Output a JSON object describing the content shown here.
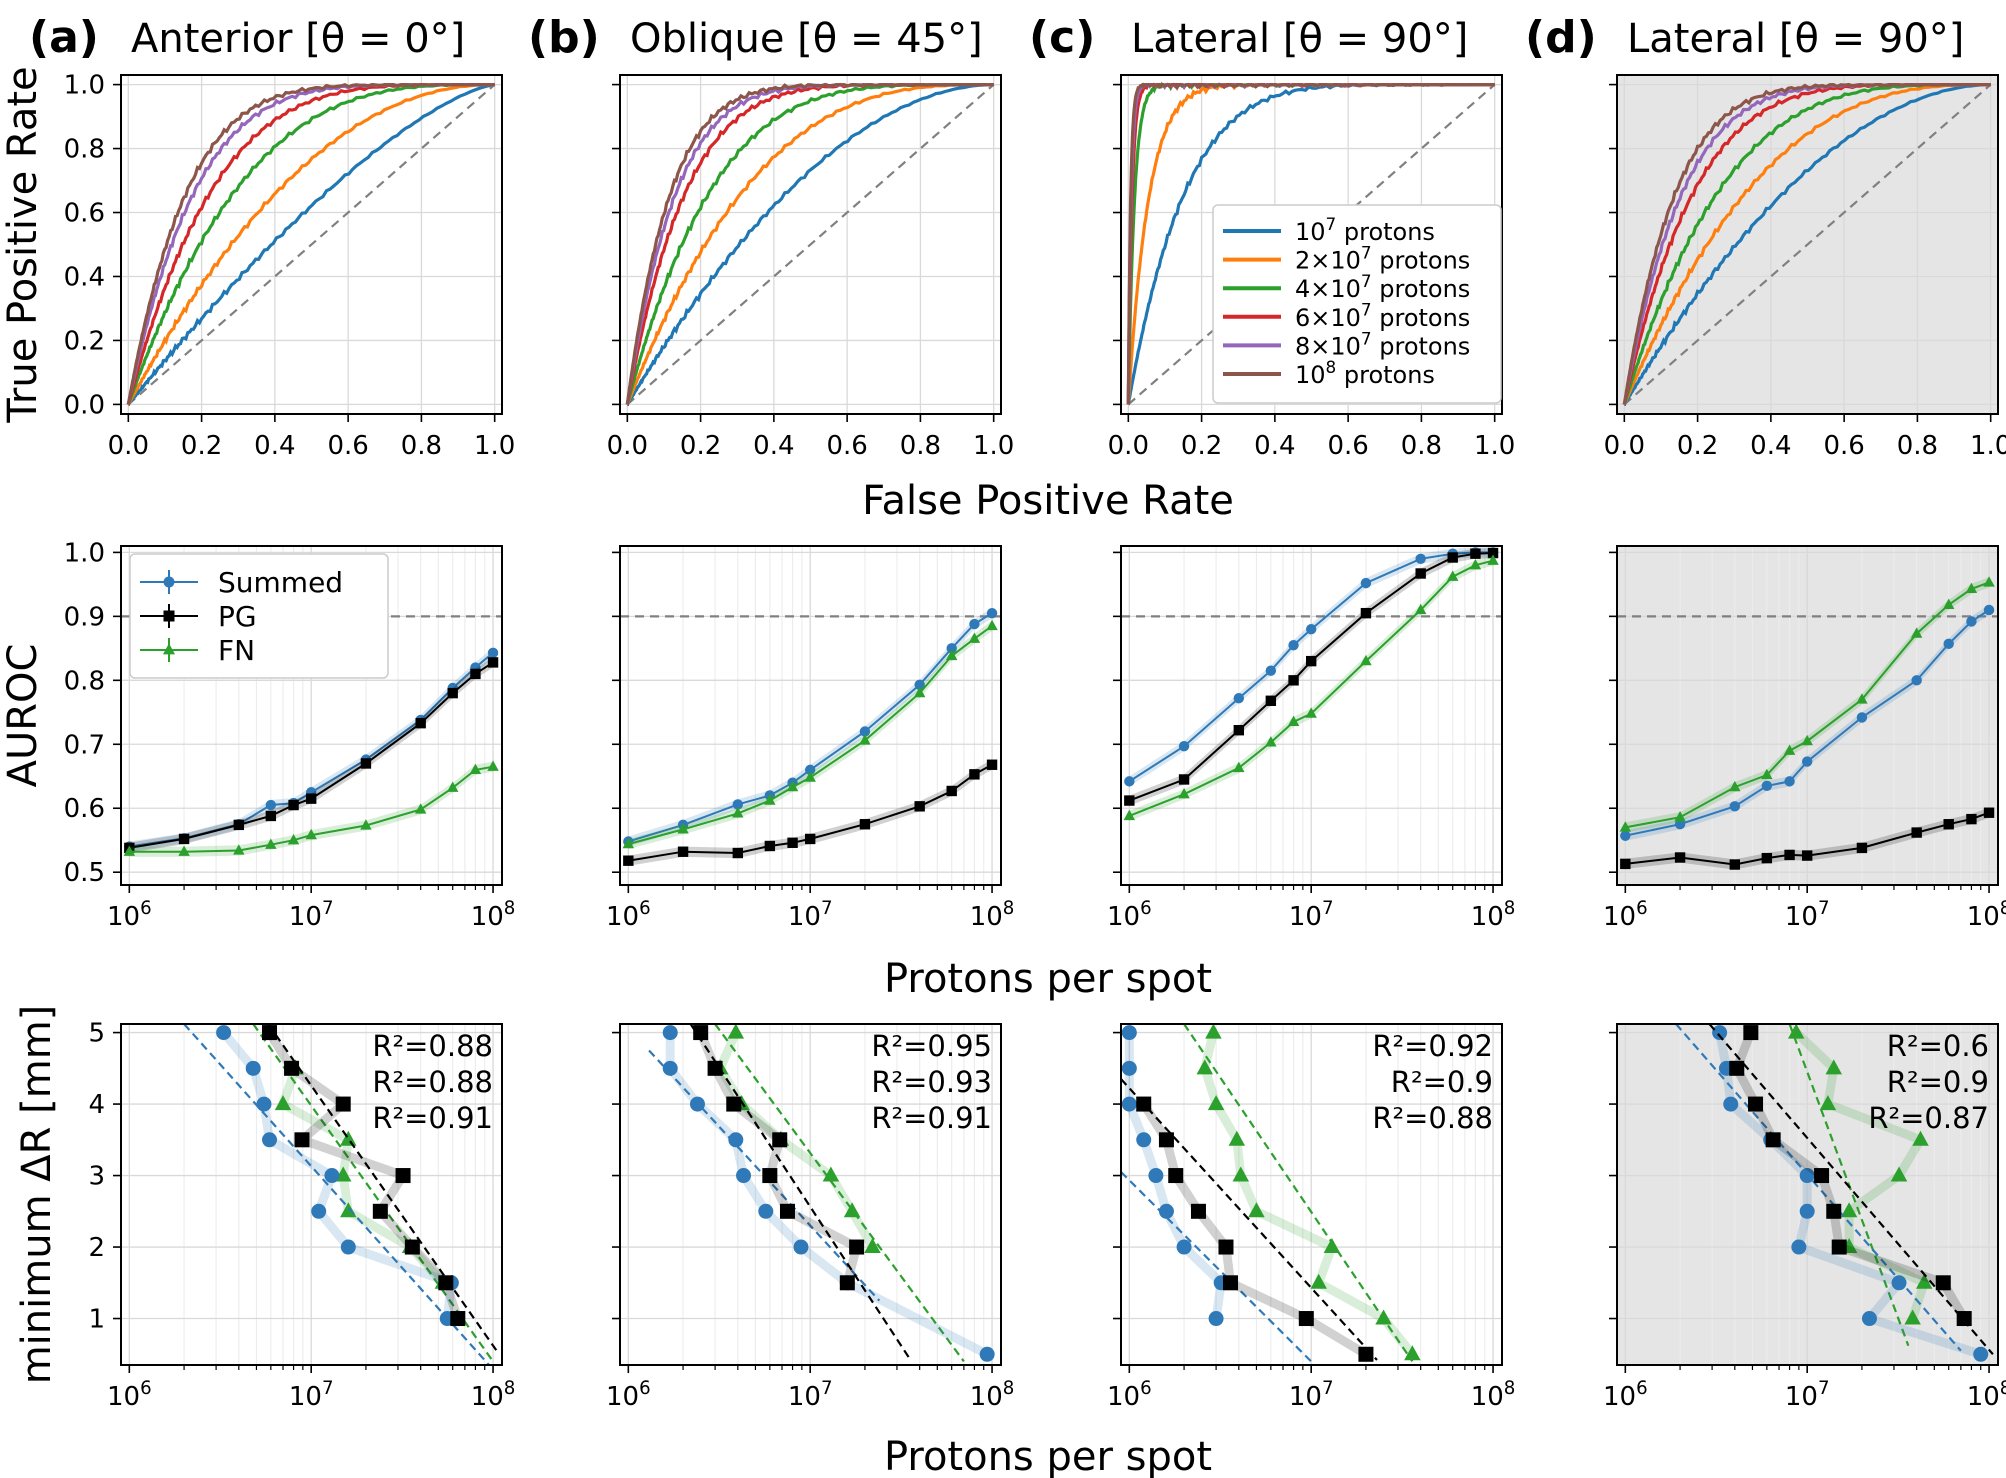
{
  "figure": {
    "panel_letters": [
      "(a)",
      "(b)",
      "(c)",
      "(d)"
    ],
    "panel_titles": [
      "Anterior [θ = 0°]",
      "Oblique [θ = 45°]",
      "Lateral [θ = 90°]",
      "Lateral [θ = 90°]"
    ],
    "panel_shaded": [
      false,
      false,
      false,
      true
    ],
    "row_xlabels": [
      "False Positive Rate",
      "Protons per spot",
      "Protons per spot"
    ],
    "row_ylabels": [
      "True Positive Rate",
      "AUROC",
      "minimum ΔR [mm]"
    ]
  },
  "chart_data": [
    {
      "type": "line",
      "row": "roc",
      "xlabel": "False Positive Rate",
      "ylabel": "True Positive Rate",
      "xlim": [
        -0.02,
        1.02
      ],
      "ylim": [
        -0.03,
        1.03
      ],
      "xticks": [
        0.0,
        0.2,
        0.4,
        0.6,
        0.8,
        1.0
      ],
      "xtick_labels": [
        "0.0",
        "0.2",
        "0.4",
        "0.6",
        "0.8",
        "1.0"
      ],
      "yticks": [
        0.0,
        0.2,
        0.4,
        0.6,
        0.8,
        1.0
      ],
      "ytick_labels": [
        "0.0",
        "0.2",
        "0.4",
        "0.6",
        "0.8",
        "1.0"
      ],
      "legend": {
        "panel": 2,
        "position": "lower-right",
        "entries": [
          {
            "base": "10",
            "sup": "7",
            "rest": " protons"
          },
          {
            "base": "2×10",
            "sup": "7",
            "rest": " protons"
          },
          {
            "base": "4×10",
            "sup": "7",
            "rest": " protons"
          },
          {
            "base": "6×10",
            "sup": "7",
            "rest": " protons"
          },
          {
            "base": "8×10",
            "sup": "7",
            "rest": " protons"
          },
          {
            "base": "10",
            "sup": "8",
            "rest": " protons"
          }
        ]
      },
      "series_colors": [
        "#1f77b4",
        "#ff7f0e",
        "#2ca02c",
        "#d62728",
        "#9467bd",
        "#8c564b"
      ],
      "curve_exponents": [
        [
          1.4,
          2.1,
          3.2,
          4.3,
          5.5,
          6.3
        ],
        [
          1.9,
          2.9,
          4.3,
          6.3,
          7.6,
          8.6
        ],
        [
          6.5,
          18,
          60,
          100,
          130,
          160
        ],
        [
          1.9,
          2.7,
          3.7,
          5.2,
          6.3,
          7.2
        ]
      ]
    },
    {
      "type": "line",
      "row": "auroc",
      "xlabel": "Protons per spot",
      "ylabel": "AUROC",
      "xscale": "log",
      "xlim": [
        900000.0,
        112000000.0
      ],
      "ylim": [
        0.48,
        1.01
      ],
      "yticks": [
        0.5,
        0.6,
        0.7,
        0.8,
        0.9,
        1.0
      ],
      "ytick_labels": [
        "0.5",
        "0.6",
        "0.7",
        "0.8",
        "0.9",
        "1.0"
      ],
      "xtick_labels": [
        {
          "base": "10",
          "sup": "6"
        },
        {
          "base": "10",
          "sup": "7"
        },
        {
          "base": "10",
          "sup": "8"
        }
      ],
      "reference_line": 0.9,
      "x": [
        1000000.0,
        2000000.0,
        4000000.0,
        6000000.0,
        8000000.0,
        10000000.0,
        20000000.0,
        40000000.0,
        60000000.0,
        80000000.0,
        100000000.0
      ],
      "legend": {
        "panel": 0,
        "position": "upper-left",
        "entries": [
          "Summed",
          "PG",
          "FN"
        ]
      },
      "series_colors": {
        "Summed": "#2f79b8",
        "PG": "#000000",
        "FN": "#2ca02c"
      },
      "panels": [
        {
          "series": [
            {
              "name": "Summed",
              "values": [
                0.54,
                0.553,
                0.575,
                0.605,
                0.608,
                0.625,
                0.676,
                0.738,
                0.788,
                0.82,
                0.843
              ]
            },
            {
              "name": "PG",
              "values": [
                0.538,
                0.552,
                0.574,
                0.588,
                0.605,
                0.615,
                0.67,
                0.733,
                0.78,
                0.81,
                0.828
              ]
            },
            {
              "name": "FN",
              "values": [
                0.532,
                0.532,
                0.534,
                0.543,
                0.55,
                0.558,
                0.573,
                0.598,
                0.632,
                0.66,
                0.665
              ]
            }
          ]
        },
        {
          "series": [
            {
              "name": "Summed",
              "values": [
                0.548,
                0.574,
                0.606,
                0.62,
                0.64,
                0.66,
                0.72,
                0.793,
                0.85,
                0.888,
                0.905
              ]
            },
            {
              "name": "PG",
              "values": [
                0.518,
                0.532,
                0.53,
                0.541,
                0.546,
                0.552,
                0.575,
                0.603,
                0.627,
                0.653,
                0.668
              ]
            },
            {
              "name": "FN",
              "values": [
                0.544,
                0.567,
                0.592,
                0.612,
                0.633,
                0.648,
                0.706,
                0.78,
                0.838,
                0.865,
                0.885
              ]
            }
          ]
        },
        {
          "series": [
            {
              "name": "Summed",
              "values": [
                0.642,
                0.697,
                0.772,
                0.815,
                0.855,
                0.88,
                0.952,
                0.99,
                0.998,
                1.0,
                1.0
              ]
            },
            {
              "name": "PG",
              "values": [
                0.612,
                0.645,
                0.722,
                0.768,
                0.8,
                0.83,
                0.905,
                0.967,
                0.992,
                0.998,
                0.999
              ]
            },
            {
              "name": "FN",
              "values": [
                0.588,
                0.622,
                0.663,
                0.703,
                0.735,
                0.748,
                0.83,
                0.91,
                0.962,
                0.98,
                0.987
              ]
            }
          ]
        },
        {
          "series": [
            {
              "name": "Summed",
              "values": [
                0.557,
                0.575,
                0.603,
                0.635,
                0.642,
                0.673,
                0.742,
                0.8,
                0.857,
                0.892,
                0.91
              ]
            },
            {
              "name": "PG",
              "values": [
                0.513,
                0.523,
                0.512,
                0.522,
                0.527,
                0.526,
                0.538,
                0.562,
                0.575,
                0.583,
                0.593
              ]
            },
            {
              "name": "FN",
              "values": [
                0.57,
                0.586,
                0.633,
                0.652,
                0.69,
                0.705,
                0.77,
                0.873,
                0.918,
                0.943,
                0.953
              ]
            }
          ]
        }
      ]
    },
    {
      "type": "scatter",
      "row": "delta_r",
      "xlabel": "Protons per spot",
      "ylabel": "minimum ΔR [mm]",
      "xscale": "log",
      "xlim": [
        900000.0,
        112000000.0
      ],
      "ylim": [
        0.35,
        5.12
      ],
      "yticks": [
        1,
        2,
        3,
        4,
        5
      ],
      "ytick_labels": [
        "1",
        "2",
        "3",
        "4",
        "5"
      ],
      "xtick_labels": [
        {
          "base": "10",
          "sup": "6"
        },
        {
          "base": "10",
          "sup": "7"
        },
        {
          "base": "10",
          "sup": "8"
        }
      ],
      "y": [
        5.0,
        4.5,
        4.0,
        3.5,
        3.0,
        2.5,
        2.0,
        1.5,
        1.0,
        0.5
      ],
      "series_colors": {
        "Summed": "#2f79b8",
        "PG": "#000000",
        "FN": "#2ca02c"
      },
      "panels": [
        {
          "r2_labels": [
            "R²=0.88",
            "R²=0.88",
            "R²=0.91"
          ],
          "series": [
            {
              "name": "Summed",
              "x": [
                3300000.0,
                4800000.0,
                5500000.0,
                5900000.0,
                13000000.0,
                11000000.0,
                16000000.0,
                59000000.0,
                56000000.0,
                null
              ],
              "fit": [
                [
                  2000000.0,
                  5.12
                ],
                [
                  95000000.0,
                  0.35
                ]
              ]
            },
            {
              "name": "PG",
              "x": [
                5900000.0,
                7800000.0,
                15000000.0,
                8900000.0,
                32000000.0,
                24000000.0,
                36000000.0,
                55000000.0,
                64000000.0,
                null
              ],
              "fit": [
                [
                  5800000.0,
                  5.12
                ],
                [
                  108000000.0,
                  0.5
                ]
              ]
            },
            {
              "name": "FN",
              "x": [
                null,
                8200000.0,
                7000000.0,
                16000000.0,
                15000000.0,
                16000000.0,
                35000000.0,
                53000000.0,
                null,
                null
              ],
              "fit": [
                [
                  4800000.0,
                  5.12
                ],
                [
                  100000000.0,
                  0.4
                ]
              ]
            }
          ]
        },
        {
          "r2_labels": [
            "R²=0.95",
            "R²=0.93",
            "R²=0.91"
          ],
          "series": [
            {
              "name": "Summed",
              "x": [
                1700000.0,
                1700000.0,
                2400000.0,
                3900000.0,
                4300000.0,
                5700000.0,
                8900000.0,
                16000000.0,
                null,
                94000000.0
              ],
              "fit": [
                [
                  1300000.0,
                  4.75
                ],
                [
                  24000000.0,
                  1.25
                ]
              ]
            },
            {
              "name": "PG",
              "x": [
                2500000.0,
                3000000.0,
                3800000.0,
                6800000.0,
                6000000.0,
                7500000.0,
                18000000.0,
                16000000.0,
                null,
                null
              ],
              "fit": [
                [
                  2200000.0,
                  5.12
                ],
                [
                  35000000.0,
                  0.45
                ]
              ]
            },
            {
              "name": "FN",
              "x": [
                3900000.0,
                3200000.0,
                4200000.0,
                6900000.0,
                13000000.0,
                17000000.0,
                22000000.0,
                null,
                null,
                null
              ],
              "fit": [
                [
                  3000000.0,
                  5.12
                ],
                [
                  70000000.0,
                  0.4
                ]
              ]
            }
          ]
        },
        {
          "r2_labels": [
            "R²=0.92",
            "R²=0.9",
            "R²=0.88"
          ],
          "series": [
            {
              "name": "Summed",
              "x": [
                1000000.0,
                1000000.0,
                1000000.0,
                1200000.0,
                1400000.0,
                1600000.0,
                2000000.0,
                3200000.0,
                3000000.0,
                null
              ],
              "fit": [
                [
                  900000.0,
                  3.05
                ],
                [
                  10000000.0,
                  0.4
                ]
              ],
              "fit_note": "lower-left"
            },
            {
              "name": "PG",
              "x": [
                null,
                null,
                1200000.0,
                1600000.0,
                1800000.0,
                2400000.0,
                3400000.0,
                3600000.0,
                9400000.0,
                20000000.0
              ],
              "fit": [
                [
                  900000.0,
                  4.35
                ],
                [
                  23000000.0,
                  0.42
                ]
              ]
            },
            {
              "name": "FN",
              "x": [
                2900000.0,
                2600000.0,
                3000000.0,
                3900000.0,
                4100000.0,
                5000000.0,
                13000000.0,
                11000000.0,
                25000000.0,
                36000000.0
              ],
              "fit": [
                [
                  2000000.0,
                  5.12
                ],
                [
                  36000000.0,
                  0.4
                ]
              ]
            }
          ]
        },
        {
          "r2_labels": [
            "R²=0.6",
            "R²=0.9",
            "R²=0.87"
          ],
          "series": [
            {
              "name": "Summed",
              "x": [
                3300000.0,
                3600000.0,
                3800000.0,
                6300000.0,
                10000000.0,
                10000000.0,
                9000000.0,
                32000000.0,
                22000000.0,
                90000000.0
              ],
              "fit": [
                [
                  1900000.0,
                  5.12
                ],
                [
                  70000000.0,
                  0.55
                ]
              ]
            },
            {
              "name": "PG",
              "x": [
                4900000.0,
                4100000.0,
                5200000.0,
                6500000.0,
                12000000.0,
                14000000.0,
                15000000.0,
                56000000.0,
                73000000.0,
                null
              ],
              "fit": [
                [
                  2900000.0,
                  5.12
                ],
                [
                  105000000.0,
                  0.5
                ]
              ]
            },
            {
              "name": "FN",
              "x": [
                8700000.0,
                14000000.0,
                13000000.0,
                42000000.0,
                32000000.0,
                17000000.0,
                17000000.0,
                44000000.0,
                38000000.0,
                null
              ],
              "fit": [
                [
                  8000000.0,
                  5.12
                ],
                [
                  36000000.0,
                  0.62
                ]
              ]
            }
          ]
        }
      ]
    }
  ]
}
